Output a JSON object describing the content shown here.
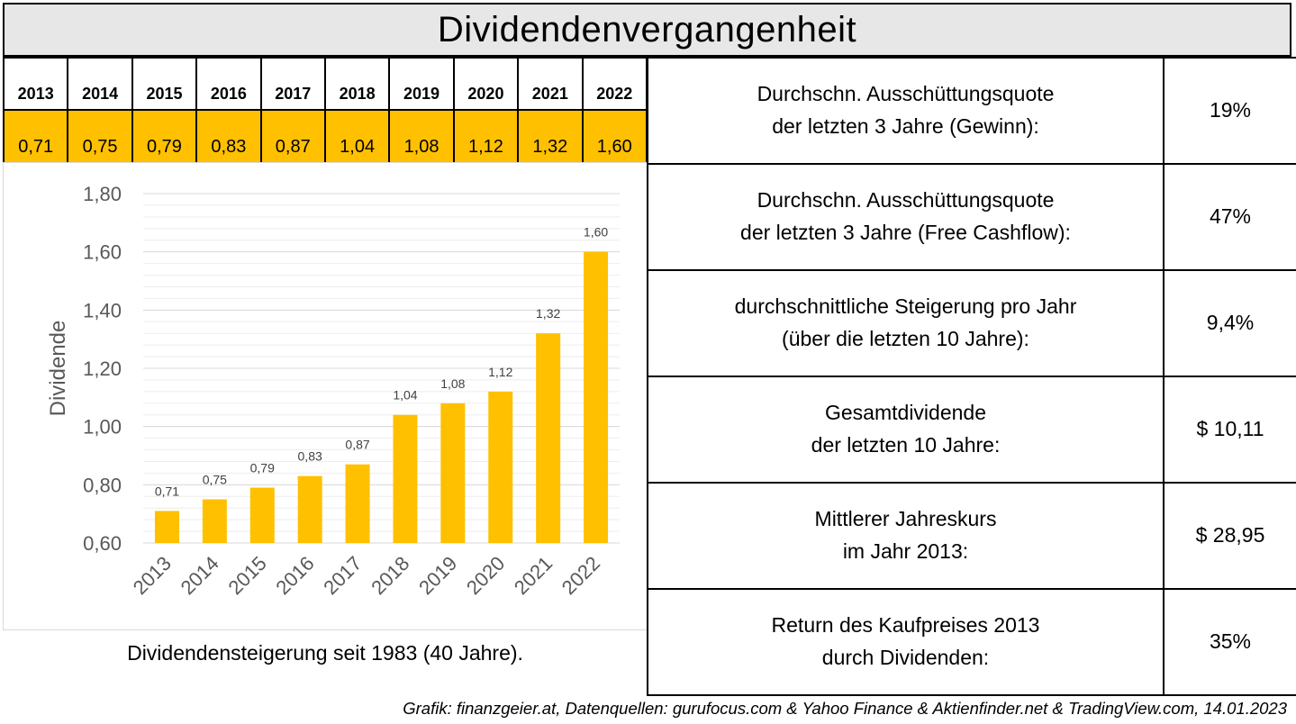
{
  "title": "Dividendenvergangenheit",
  "year_table": {
    "years": [
      "2013",
      "2014",
      "2015",
      "2016",
      "2017",
      "2018",
      "2019",
      "2020",
      "2021",
      "2022"
    ],
    "values": [
      "0,71",
      "0,75",
      "0,79",
      "0,83",
      "0,87",
      "1,04",
      "1,08",
      "1,12",
      "1,32",
      "1,60"
    ]
  },
  "metrics": [
    {
      "label_line1": "Durchschn. Ausschüttungsquote",
      "label_line2": "der letzten 3 Jahre (Gewinn):",
      "value": "19%"
    },
    {
      "label_line1": "Durchschn. Ausschüttungsquote",
      "label_line2": "der letzten 3 Jahre (Free Cashflow):",
      "value": "47%"
    },
    {
      "label_line1": "durchschnittliche Steigerung pro Jahr",
      "label_line2": "(über die letzten 10 Jahre):",
      "value": "9,4%"
    },
    {
      "label_line1": "Gesamtdividende",
      "label_line2": "der letzten 10 Jahre:",
      "value": "$ 10,11"
    },
    {
      "label_line1": "Mittlerer Jahreskurs",
      "label_line2": "im Jahr 2013:",
      "value": "$ 28,95"
    },
    {
      "label_line1": "Return des Kaufpreises 2013",
      "label_line2": "durch Dividenden:",
      "value": "35%"
    }
  ],
  "caption": "Dividendensteigerung seit 1983 (40 Jahre).",
  "credit": "Grafik: finanzgeier.at, Datenquellen: gurufocus.com & Yahoo Finance & Aktienfinder.net & TradingView.com, 14.01.2023",
  "chart_data": {
    "type": "bar",
    "categories": [
      "2013",
      "2014",
      "2015",
      "2016",
      "2017",
      "2018",
      "2019",
      "2020",
      "2021",
      "2022"
    ],
    "values": [
      0.71,
      0.75,
      0.79,
      0.83,
      0.87,
      1.04,
      1.08,
      1.12,
      1.32,
      1.6
    ],
    "data_labels": [
      "0,71",
      "0,75",
      "0,79",
      "0,83",
      "0,87",
      "1,04",
      "1,08",
      "1,12",
      "1,32",
      "1,60"
    ],
    "ylabel": "Dividende",
    "ylim": [
      0.6,
      1.8
    ],
    "yticks": [
      0.6,
      0.8,
      1.0,
      1.2,
      1.4,
      1.6,
      1.8
    ],
    "ytick_labels": [
      "0,60",
      "0,80",
      "1,00",
      "1,20",
      "1,40",
      "1,60",
      "1,80"
    ],
    "grid": true,
    "bar_color": "#ffc000"
  }
}
